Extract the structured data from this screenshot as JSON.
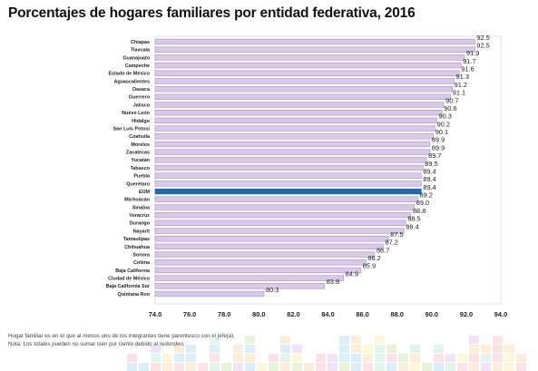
{
  "title": "Porcentajes de hogares familiares por entidad federativa, 2016",
  "notes": [
    "Hogar familiar es en el que al menos uno de los integrantes tiene parentesco con el jefe(a).",
    "Nota: Los totales pueden no sumar cien por ciento debido al redondeo."
  ],
  "colors": {
    "bar_fill": "#d8c8ea",
    "bar_stroke": "#9b86b8",
    "highlight": "#1f67b1",
    "decorative": [
      "#f2a6b5",
      "#f7c98b",
      "#b6d98a",
      "#8ecae6",
      "#c9a7e6",
      "#f6e58d",
      "#a5e0c8"
    ]
  },
  "chart_data": {
    "type": "bar",
    "orientation": "horizontal",
    "title": "Porcentajes de hogares familiares por entidad federativa, 2016",
    "categories": [
      "Chiapas",
      "Tlaxcala",
      "Guanajuato",
      "Campeche",
      "Estado de México",
      "Aguascalientes",
      "Oaxaca",
      "Guerrero",
      "Jalisco",
      "Nuevo León",
      "Hidalgo",
      "San Luis Potosí",
      "Coahuila",
      "Morelos",
      "Zacatecas",
      "Yucatán",
      "Tabasco",
      "Puebla",
      "Querétaro",
      "EUM",
      "Michoacán",
      "Sinaloa",
      "Veracruz",
      "Durango",
      "Nayarit",
      "Tamaulipas",
      "Chihuahua",
      "Sonora",
      "Colima",
      "Baja California",
      "Ciudad de México",
      "Baja California Sur",
      "Quintana Roo"
    ],
    "values": [
      92.5,
      92.5,
      91.9,
      91.7,
      91.6,
      91.3,
      91.2,
      91.1,
      90.7,
      90.6,
      90.3,
      90.2,
      90.1,
      89.9,
      89.9,
      89.7,
      89.5,
      89.4,
      89.4,
      89.4,
      89.2,
      89.0,
      88.8,
      88.5,
      88.4,
      87.5,
      87.2,
      86.7,
      86.2,
      85.9,
      84.9,
      83.8,
      80.3
    ],
    "value_labels": [
      "92.5",
      "92.5",
      "91.9",
      "91.7",
      "91.6",
      "91.3",
      "91.2",
      "91.1",
      "90.7",
      "90.6",
      "90.3",
      "90.2",
      "90.1",
      "89.9",
      "89.9",
      "89.7",
      "89.5",
      "89.4",
      "89.4",
      "89.4",
      "89.2",
      "89.0",
      "88.8",
      "88.5",
      "88.4",
      "87.5",
      "87.2",
      "86.7",
      "86.2",
      "85.9",
      "84.9",
      "83.8",
      "80.3"
    ],
    "highlight_category": "EUM",
    "xlim": [
      74,
      94
    ],
    "xticks": [
      "74.0",
      "76.0",
      "78.0",
      "80.0",
      "82.0",
      "84.0",
      "86.0",
      "88.0",
      "90.0",
      "92.0",
      "94.0"
    ],
    "xlabel": "",
    "ylabel": "",
    "grid": false,
    "legend": "none"
  }
}
